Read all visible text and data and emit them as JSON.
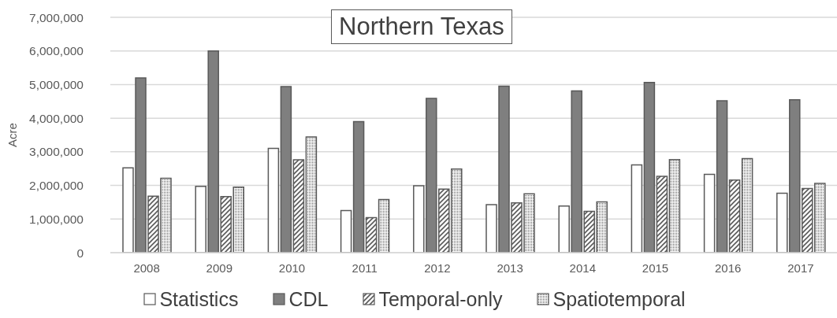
{
  "chart_data": {
    "type": "bar",
    "title": "Northern Texas",
    "ylabel": "Acre",
    "categories": [
      "2008",
      "2009",
      "2010",
      "2011",
      "2012",
      "2013",
      "2014",
      "2015",
      "2016",
      "2017"
    ],
    "series": [
      {
        "name": "Statistics",
        "color": "#ffffff",
        "values": [
          2520000,
          1970000,
          3100000,
          1250000,
          1990000,
          1430000,
          1390000,
          2610000,
          2330000,
          1770000
        ]
      },
      {
        "name": "CDL",
        "color": "#7f7f7f",
        "values": [
          5200000,
          6000000,
          4940000,
          3900000,
          4590000,
          4950000,
          4810000,
          5060000,
          4520000,
          4550000
        ]
      },
      {
        "name": "Temporal-only",
        "color": "#595959",
        "values": [
          1680000,
          1670000,
          2760000,
          1040000,
          1890000,
          1480000,
          1230000,
          2270000,
          2160000,
          1910000
        ]
      },
      {
        "name": "Spatiotemporal",
        "color": "#595959",
        "values": [
          2210000,
          1950000,
          3440000,
          1580000,
          2490000,
          1750000,
          1510000,
          2770000,
          2800000,
          2060000
        ]
      }
    ],
    "ylim": [
      0,
      7000000
    ],
    "yticks": [
      0,
      {
        "value": 1000000,
        "label": "1,000,000"
      },
      {
        "value": 2000000,
        "label": "2,000,000"
      },
      {
        "value": 3000000,
        "label": "3,000,000"
      },
      {
        "value": 4000000,
        "label": "4,000,000"
      },
      {
        "value": 5000000,
        "label": "5,000,000"
      },
      {
        "value": 6000000,
        "label": "6,000,000"
      },
      {
        "value": 7000000,
        "label": "7,000,000"
      }
    ],
    "grid": "y",
    "legend": "bottom"
  }
}
